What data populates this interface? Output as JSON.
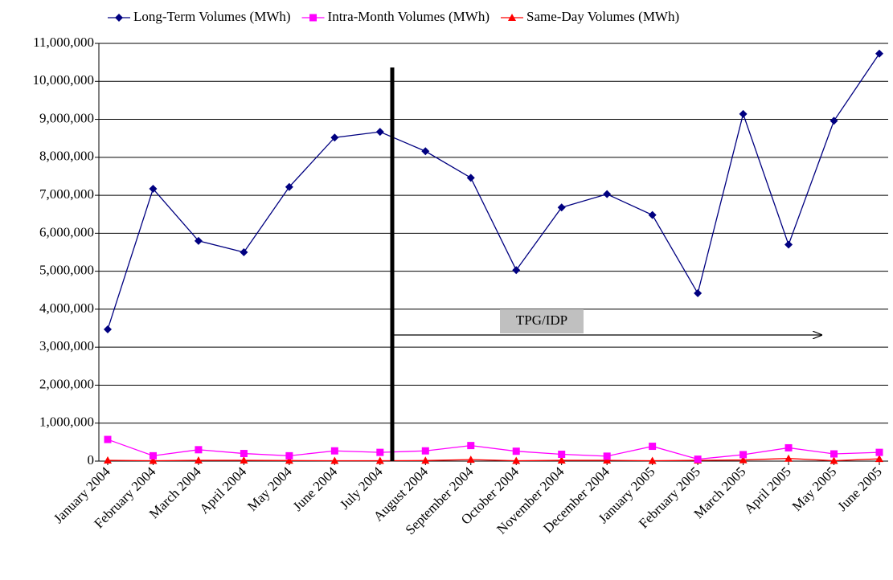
{
  "chart_data": {
    "type": "line",
    "categories": [
      "January 2004",
      "February 2004",
      "March 2004",
      "April 2004",
      "May 2004",
      "June 2004",
      "July 2004",
      "August 2004",
      "September 2004",
      "October 2004",
      "November 2004",
      "December 2004",
      "January 2005",
      "February 2005",
      "March 2005",
      "April 2005",
      "May 2005",
      "June 2005"
    ],
    "series": [
      {
        "name": "Long-Term Volumes (MWh)",
        "color": "#000080",
        "marker": "diamond",
        "values": [
          3470000,
          7170000,
          5800000,
          5500000,
          7220000,
          8520000,
          8670000,
          8160000,
          7460000,
          5030000,
          6680000,
          7030000,
          6480000,
          4420000,
          9140000,
          5700000,
          8960000,
          10730000
        ]
      },
      {
        "name": "Intra-Month Volumes (MWh)",
        "color": "#ff00ff",
        "marker": "square",
        "values": [
          570000,
          140000,
          300000,
          200000,
          140000,
          270000,
          230000,
          270000,
          410000,
          260000,
          180000,
          130000,
          390000,
          50000,
          170000,
          350000,
          190000,
          230000
        ]
      },
      {
        "name": "Same-Day Volumes (MWh)",
        "color": "#ff0000",
        "marker": "triangle",
        "values": [
          20000,
          10000,
          20000,
          20000,
          15000,
          10000,
          10000,
          15000,
          40000,
          10000,
          20000,
          20000,
          10000,
          20000,
          30000,
          70000,
          10000,
          60000
        ]
      }
    ],
    "ylim": [
      0,
      11000000
    ],
    "yticks": [
      0,
      {
        "value": 1000000,
        "label": "1,000,000"
      },
      {
        "value": 2000000,
        "label": "2,000,000"
      },
      {
        "value": 3000000,
        "label": "3,000,000"
      },
      {
        "value": 4000000,
        "label": "4,000,000"
      },
      {
        "value": 5000000,
        "label": "5,000,000"
      },
      {
        "value": 6000000,
        "label": "6,000,000"
      },
      {
        "value": 7000000,
        "label": "7,000,000"
      },
      {
        "value": 8000000,
        "label": "8,000,000"
      },
      {
        "value": 9000000,
        "label": "9,000,000"
      },
      {
        "value": 10000000,
        "label": "10,000,000"
      },
      {
        "value": 11000000,
        "label": "11,000,000"
      }
    ],
    "grid": true,
    "legend": "top",
    "annotation": "TPG/IDP"
  }
}
